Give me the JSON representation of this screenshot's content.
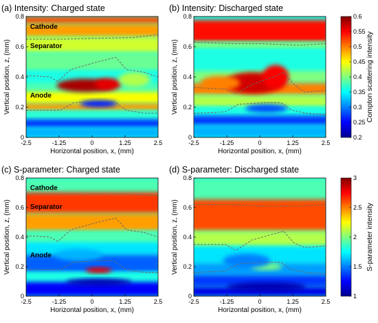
{
  "chart_data": [
    {
      "panel": "(a)",
      "type": "heatmap",
      "title": "(a) Intensity: Charged state",
      "xlabel": "Horizontal position, x, (mm)",
      "ylabel": "Vertical position, z, (mm)",
      "xlim": [
        -2.5,
        2.5
      ],
      "ylim": [
        0,
        0.8
      ],
      "xticks": [
        "-2.5",
        "-1.25",
        "0",
        "1.25",
        "2.5"
      ],
      "yticks": [
        "0",
        "0.2",
        "0.4",
        "0.6",
        "0.8"
      ],
      "colormap": "jet",
      "clim": [
        0.2,
        0.6
      ],
      "region_labels": [
        "Cathode",
        "Separator",
        "Anode"
      ],
      "boundaries": [
        {
          "x": [
            -2.5,
            -1.6,
            -1.3,
            -0.8,
            0.2,
            0.9,
            1.3,
            2.0,
            2.5
          ],
          "z": [
            0.41,
            0.4,
            0.37,
            0.45,
            0.5,
            0.53,
            0.45,
            0.43,
            0.4
          ]
        },
        {
          "x": [
            -2.5,
            -1.2,
            -0.7,
            0.2,
            0.8,
            1.3,
            2.0,
            2.5
          ],
          "z": [
            0.18,
            0.18,
            0.23,
            0.24,
            0.24,
            0.18,
            0.16,
            0.16
          ]
        },
        {
          "x": [
            -2.5,
            -1.0,
            0.0,
            1.5,
            2.5
          ],
          "z": [
            0.65,
            0.65,
            0.655,
            0.66,
            0.68
          ]
        }
      ]
    },
    {
      "panel": "(b)",
      "type": "heatmap",
      "title": "(b) Intensity: Discharged state",
      "xlabel": "Horizontal position, x, (mm)",
      "ylabel": "Vertical position, z, (mm)",
      "xlim": [
        -2.5,
        2.5
      ],
      "ylim": [
        0,
        0.8
      ],
      "xticks": [
        "-2.5",
        "-1.25",
        "0",
        "1.25",
        "2.5"
      ],
      "yticks": [
        "0",
        "0.2",
        "0.4",
        "0.6",
        "0.8"
      ],
      "colormap": "jet",
      "clim": [
        0.2,
        0.6
      ],
      "colorbar": {
        "label": "Compton scattering intensity",
        "ticks": [
          "0.2",
          "0.25",
          "0.3",
          "0.35",
          "0.4",
          "0.45",
          "0.5",
          "0.55",
          "0.6"
        ]
      },
      "boundaries": [
        {
          "x": [
            -2.5,
            -1.3,
            -0.9,
            -0.3,
            0.5,
            0.9,
            1.3,
            1.7,
            2.5
          ],
          "z": [
            0.33,
            0.32,
            0.29,
            0.35,
            0.4,
            0.43,
            0.35,
            0.3,
            0.31
          ]
        },
        {
          "x": [
            -2.5,
            -1.3,
            -0.8,
            0.2,
            0.8,
            1.2,
            1.8,
            2.5
          ],
          "z": [
            0.16,
            0.17,
            0.22,
            0.23,
            0.23,
            0.18,
            0.16,
            0.15
          ]
        },
        {
          "x": [
            -2.5,
            -1.0,
            0.0,
            1.5,
            2.5
          ],
          "z": [
            0.63,
            0.62,
            0.62,
            0.61,
            0.62
          ]
        }
      ]
    },
    {
      "panel": "(c)",
      "type": "heatmap",
      "title": "(c) S-parameter: Charged state",
      "xlabel": "Horizontal position, x, (mm)",
      "ylabel": "Vertical position, z, (mm)",
      "xlim": [
        -2.5,
        2.5
      ],
      "ylim": [
        0,
        0.8
      ],
      "xticks": [
        "-2.5",
        "-1.25",
        "0",
        "1.25",
        "2.5"
      ],
      "yticks": [
        "0",
        "0.2",
        "0.4",
        "0.6",
        "0.8"
      ],
      "colormap": "jet",
      "clim": [
        1,
        3
      ],
      "region_labels": [
        "Cathode",
        "Separator",
        "Anode"
      ],
      "boundaries": [
        {
          "x": [
            -2.5,
            -1.6,
            -1.3,
            -0.8,
            0.2,
            0.9,
            1.3,
            2.0,
            2.5
          ],
          "z": [
            0.41,
            0.4,
            0.37,
            0.45,
            0.5,
            0.53,
            0.45,
            0.43,
            0.4
          ]
        },
        {
          "x": [
            -2.5,
            -1.2,
            -0.7,
            0.2,
            0.8,
            1.3,
            2.0,
            2.5
          ],
          "z": [
            0.18,
            0.18,
            0.23,
            0.24,
            0.24,
            0.18,
            0.16,
            0.16
          ]
        },
        {
          "x": [
            -2.5,
            -1.0,
            0.0,
            1.5,
            2.5
          ],
          "z": [
            0.69,
            0.69,
            0.69,
            0.69,
            0.68
          ]
        }
      ]
    },
    {
      "panel": "(d)",
      "type": "heatmap",
      "title": "(d) S-parameter: Discharged state",
      "xlabel": "Horizontal position, x, (mm)",
      "ylabel": "Vertical position, z, (mm)",
      "xlim": [
        -2.5,
        2.5
      ],
      "ylim": [
        0,
        0.8
      ],
      "xticks": [
        "-2.5",
        "-1.25",
        "0",
        "1.25",
        "2.5"
      ],
      "yticks": [
        "0",
        "0.2",
        "0.4",
        "0.6",
        "0.8"
      ],
      "colormap": "jet",
      "clim": [
        1,
        3
      ],
      "colorbar": {
        "label": "S-parameter intensity",
        "ticks": [
          "1",
          "1.5",
          "2",
          "2.5",
          "3"
        ]
      },
      "boundaries": [
        {
          "x": [
            -2.5,
            -1.3,
            -0.9,
            -0.3,
            0.5,
            0.9,
            1.3,
            1.7,
            2.5
          ],
          "z": [
            0.35,
            0.35,
            0.31,
            0.38,
            0.42,
            0.44,
            0.36,
            0.33,
            0.34
          ]
        },
        {
          "x": [
            -2.5,
            -1.3,
            -0.8,
            0.2,
            0.8,
            1.2,
            1.8,
            2.5
          ],
          "z": [
            0.16,
            0.17,
            0.22,
            0.23,
            0.23,
            0.18,
            0.16,
            0.15
          ]
        },
        {
          "x": [
            -2.5,
            -1.0,
            0.0,
            1.5,
            2.5
          ],
          "z": [
            0.62,
            0.62,
            0.61,
            0.61,
            0.62
          ]
        }
      ]
    }
  ]
}
